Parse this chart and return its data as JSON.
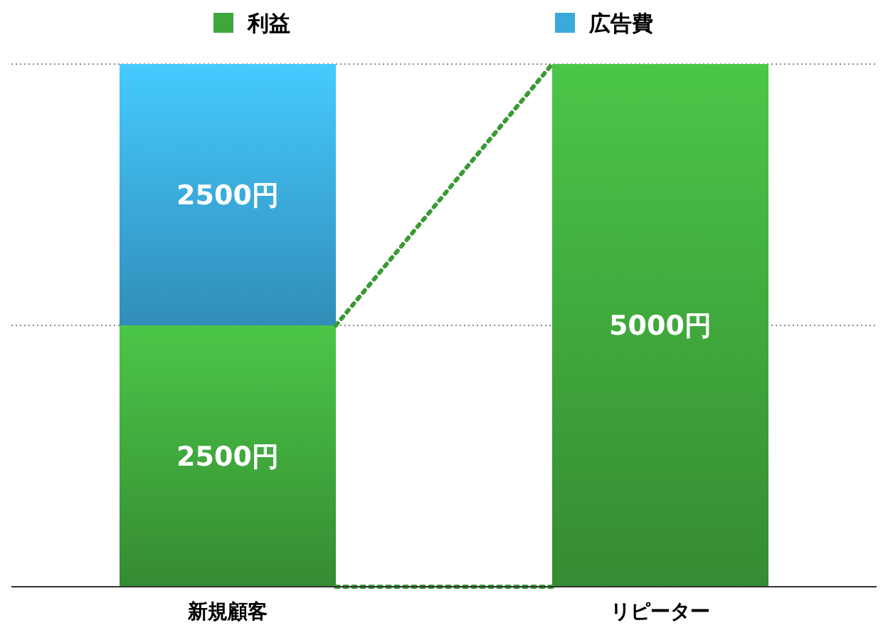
{
  "chart_data": {
    "type": "bar",
    "stacked": true,
    "categories": [
      "新規顧客",
      "リピーター"
    ],
    "series": [
      {
        "name": "利益",
        "color": "#3fa63c",
        "values": [
          2500,
          5000
        ],
        "value_labels": [
          "2500円",
          "5000円"
        ]
      },
      {
        "name": "広告費",
        "color": "#3aa9dc",
        "values": [
          2500,
          0
        ],
        "value_labels": [
          "2500円",
          null
        ]
      }
    ],
    "ylim": [
      0,
      5000
    ],
    "ref_lines": [
      {
        "axis": "y",
        "value": 2500,
        "color": "#888888",
        "line_style": "dotted"
      },
      {
        "axis": "y",
        "value": 5000,
        "color": "#888888",
        "line_style": "dotted"
      }
    ],
    "tick_labels": "x",
    "legend": "top"
  }
}
